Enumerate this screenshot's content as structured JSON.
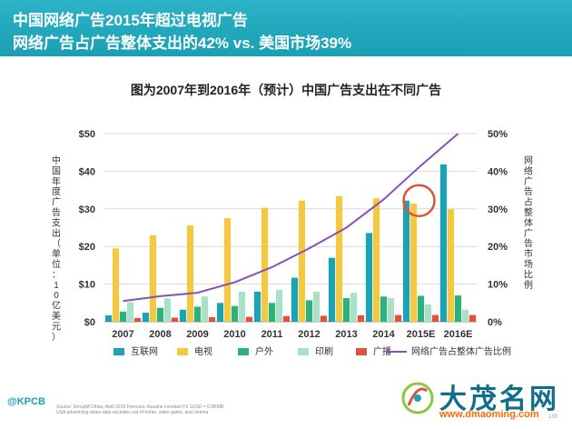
{
  "header": {
    "line1": "中国网络广告2015年超过电视广告",
    "line2": "网络广告占广告整体支出的42% vs. 美国市场39%"
  },
  "chart_data": {
    "type": "bar",
    "title": "图为2007年到2016年（预计）中国广告支出在不同广告",
    "ylabel": "中国年度广告支出（单位：10亿美元）",
    "y2label": "网络广告占整体广告市场比例",
    "categories": [
      "2007",
      "2008",
      "2009",
      "2010",
      "2011",
      "2012",
      "2013",
      "2014",
      "2015E",
      "2016E"
    ],
    "ylim": [
      0,
      50
    ],
    "yticks": [
      "$0",
      "$10",
      "$20",
      "$30",
      "$40",
      "$50"
    ],
    "y2lim": [
      0,
      50
    ],
    "y2ticks": [
      "0%",
      "10%",
      "20%",
      "30%",
      "40%",
      "50%"
    ],
    "series": [
      {
        "name": "互联网",
        "color": "#1aa3b5",
        "values": [
          1.7,
          2.4,
          3.2,
          5,
          8,
          11.7,
          17,
          23.6,
          32.2,
          41.8
        ]
      },
      {
        "name": "电视",
        "color": "#f5c842",
        "values": [
          19.5,
          23,
          25.6,
          27.5,
          30.3,
          32.2,
          33.4,
          32.8,
          31.4,
          29.9
        ]
      },
      {
        "name": "户外",
        "color": "#2db37a",
        "values": [
          2.7,
          3.7,
          4,
          4.2,
          5,
          5.7,
          6.3,
          6.7,
          6.9,
          7
        ]
      },
      {
        "name": "印刷",
        "color": "#a8e0c8",
        "values": [
          5.2,
          6.2,
          6.7,
          8,
          8.5,
          8,
          7.7,
          6.3,
          4.6,
          3.2
        ]
      },
      {
        "name": "广播",
        "color": "#e2513a",
        "values": [
          1,
          1.1,
          1.2,
          1.3,
          1.5,
          1.6,
          1.7,
          1.8,
          1.8,
          1.8
        ]
      }
    ],
    "line": {
      "name": "网络广告占整体广告比例",
      "color": "#8a4fb8",
      "values": [
        5.5,
        6.8,
        7.7,
        10.5,
        14.5,
        19.5,
        25,
        32.5,
        41.5,
        50
      ]
    },
    "annotation": {
      "type": "circle",
      "category": "2015E",
      "value": 32.2
    }
  },
  "footer": {
    "brand": "@KPCB",
    "note1": "Source: GroupM China, April 2016 Forecast. Assume constant FX 1USD = 6.5RMB.",
    "note2": "USA advertising share data excludes out-of-home, video game, and cinema.",
    "page": "189"
  },
  "watermark": {
    "text": "大茂名网",
    "domain": "www.dmaoming.com"
  }
}
